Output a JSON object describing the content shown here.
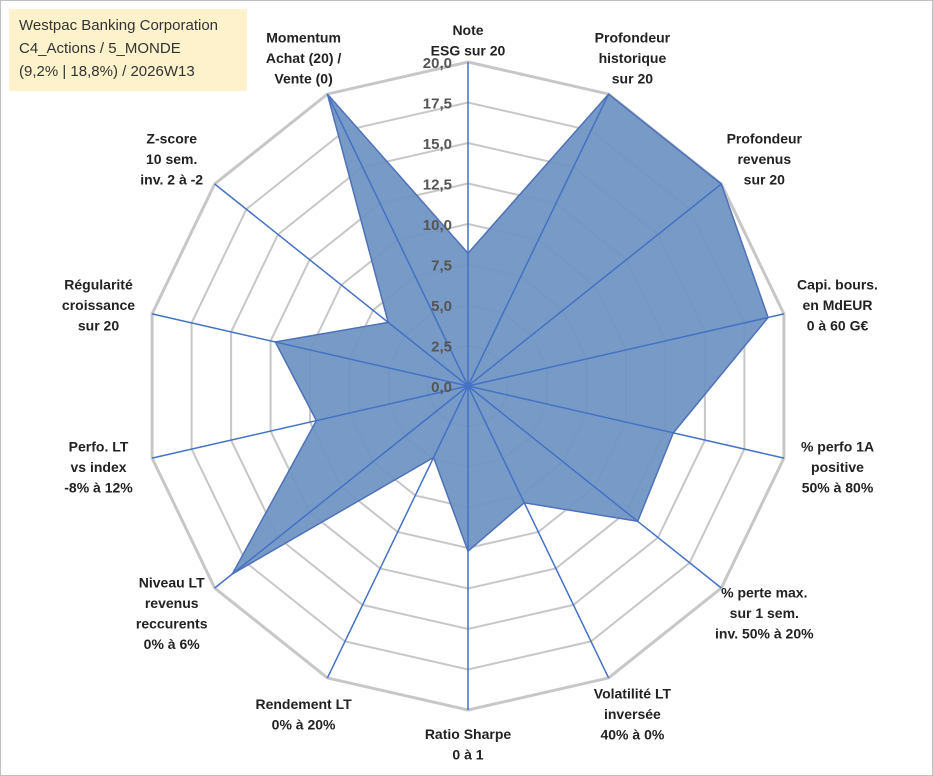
{
  "chart_data": {
    "type": "radar",
    "title_box": {
      "line1": "Westpac Banking Corporation",
      "line2": "C4_Actions / 5_MONDE",
      "line3": "(9,2% | 18,8%) / 2026W13"
    },
    "rmax": 20,
    "ticks": [
      "0,0",
      "2,5",
      "5,0",
      "7,5",
      "10,0",
      "12,5",
      "15,0",
      "17,5",
      "20,0"
    ],
    "axes": [
      {
        "lines": [
          "Note",
          "ESG sur 20"
        ]
      },
      {
        "lines": [
          "Profondeur",
          "historique",
          "sur 20"
        ]
      },
      {
        "lines": [
          "Profondeur",
          "revenus",
          "sur 20"
        ]
      },
      {
        "lines": [
          "Capi. bours.",
          "en MdEUR",
          "0 à 60 G€"
        ]
      },
      {
        "lines": [
          "% perfo 1A",
          "positive",
          "50% à 80%"
        ]
      },
      {
        "lines": [
          "% perte max.",
          "sur 1 sem.",
          "inv. 50% à 20%"
        ]
      },
      {
        "lines": [
          "Volatilité LT",
          "inversée",
          "40% à 0%"
        ]
      },
      {
        "lines": [
          "Ratio Sharpe",
          "0 à 1"
        ]
      },
      {
        "lines": [
          "Rendement LT",
          "0% à 20%"
        ]
      },
      {
        "lines": [
          "Niveau LT",
          "revenus",
          "reccurents",
          "0% à 6%"
        ]
      },
      {
        "lines": [
          "Perfo. LT",
          "vs index",
          "-8% à 12%"
        ]
      },
      {
        "lines": [
          "Régularité",
          "croissance",
          "sur 20"
        ]
      },
      {
        "lines": [
          "Z-score",
          "10 sem.",
          "inv. 2 à -2"
        ]
      },
      {
        "lines": [
          "Momentum",
          "Achat (20) /",
          "Vente (0)"
        ]
      }
    ],
    "values": [
      8.2,
      20.0,
      20.0,
      19.0,
      13.0,
      13.4,
      8.0,
      10.2,
      4.9,
      18.6,
      9.6,
      12.2,
      6.3,
      20.0
    ],
    "colors": {
      "fill": "#7095c4",
      "line": "#4d72b8",
      "grid": "#c7c7c7",
      "axis": "#4472c4"
    }
  }
}
